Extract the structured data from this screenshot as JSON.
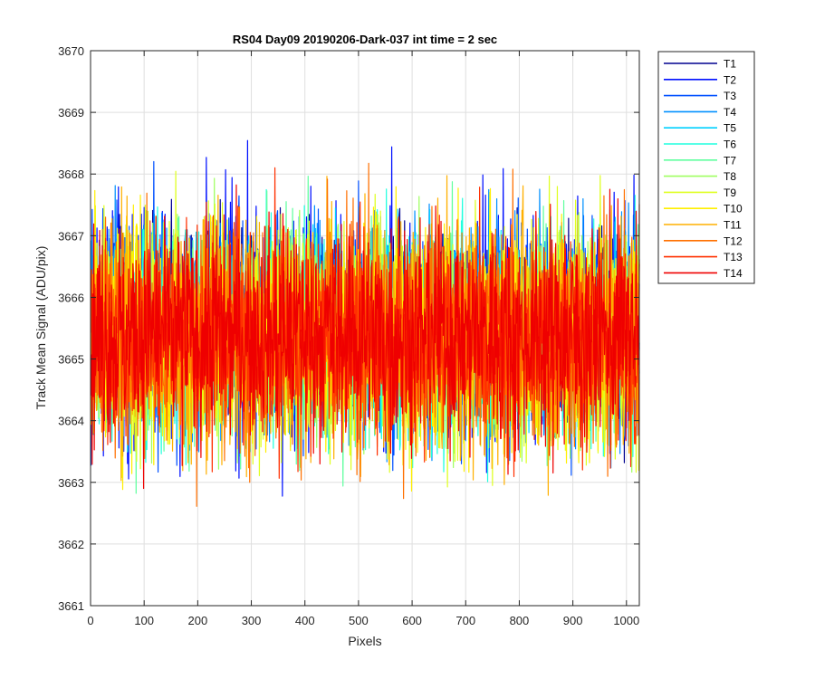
{
  "chart_data": {
    "type": "line",
    "title": "RS04 Day09 20190206-Dark-037 int time = 2 sec",
    "xlabel": "Pixels",
    "ylabel": "Track Mean Signal (ADU/pix)",
    "xlim": [
      0,
      1024
    ],
    "ylim": [
      3661,
      3670
    ],
    "xticks": [
      0,
      100,
      200,
      300,
      400,
      500,
      600,
      700,
      800,
      900,
      1000
    ],
    "yticks": [
      3661,
      3662,
      3663,
      3664,
      3665,
      3666,
      3667,
      3668,
      3669,
      3670
    ],
    "grid": true,
    "legend_position": "outside-right",
    "x_range": [
      1,
      1024
    ],
    "typical_mean": 3665.4,
    "series": [
      {
        "name": "T1",
        "color": "#00008f",
        "mean": 3665.6,
        "min": 3663.3,
        "max": 3668.7
      },
      {
        "name": "T2",
        "color": "#0010ff",
        "mean": 3665.6,
        "min": 3662.4,
        "max": 3669.4
      },
      {
        "name": "T3",
        "color": "#0050ff",
        "mean": 3665.5,
        "min": 3662.8,
        "max": 3669.1
      },
      {
        "name": "T4",
        "color": "#0090ff",
        "mean": 3665.5,
        "min": 3662.3,
        "max": 3668.6
      },
      {
        "name": "T5",
        "color": "#00d0ff",
        "mean": 3665.5,
        "min": 3662.8,
        "max": 3668.5
      },
      {
        "name": "T6",
        "color": "#20ffdf",
        "mean": 3665.4,
        "min": 3661.9,
        "max": 3668.4
      },
      {
        "name": "T7",
        "color": "#60ff9f",
        "mean": 3665.4,
        "min": 3662.4,
        "max": 3668.5
      },
      {
        "name": "T8",
        "color": "#9fff60",
        "mean": 3665.4,
        "min": 3662.6,
        "max": 3668.5
      },
      {
        "name": "T9",
        "color": "#dfff20",
        "mean": 3665.4,
        "min": 3662.3,
        "max": 3669.5
      },
      {
        "name": "T10",
        "color": "#ffef00",
        "mean": 3665.4,
        "min": 3661.9,
        "max": 3668.9
      },
      {
        "name": "T11",
        "color": "#ffb000",
        "mean": 3665.4,
        "min": 3662.0,
        "max": 3669.1
      },
      {
        "name": "T12",
        "color": "#ff7000",
        "mean": 3665.4,
        "min": 3661.8,
        "max": 3668.4
      },
      {
        "name": "T13",
        "color": "#ff3000",
        "mean": 3665.4,
        "min": 3662.2,
        "max": 3668.5
      },
      {
        "name": "T14",
        "color": "#ef0000",
        "mean": 3665.4,
        "min": 3661.9,
        "max": 3668.5
      }
    ]
  }
}
